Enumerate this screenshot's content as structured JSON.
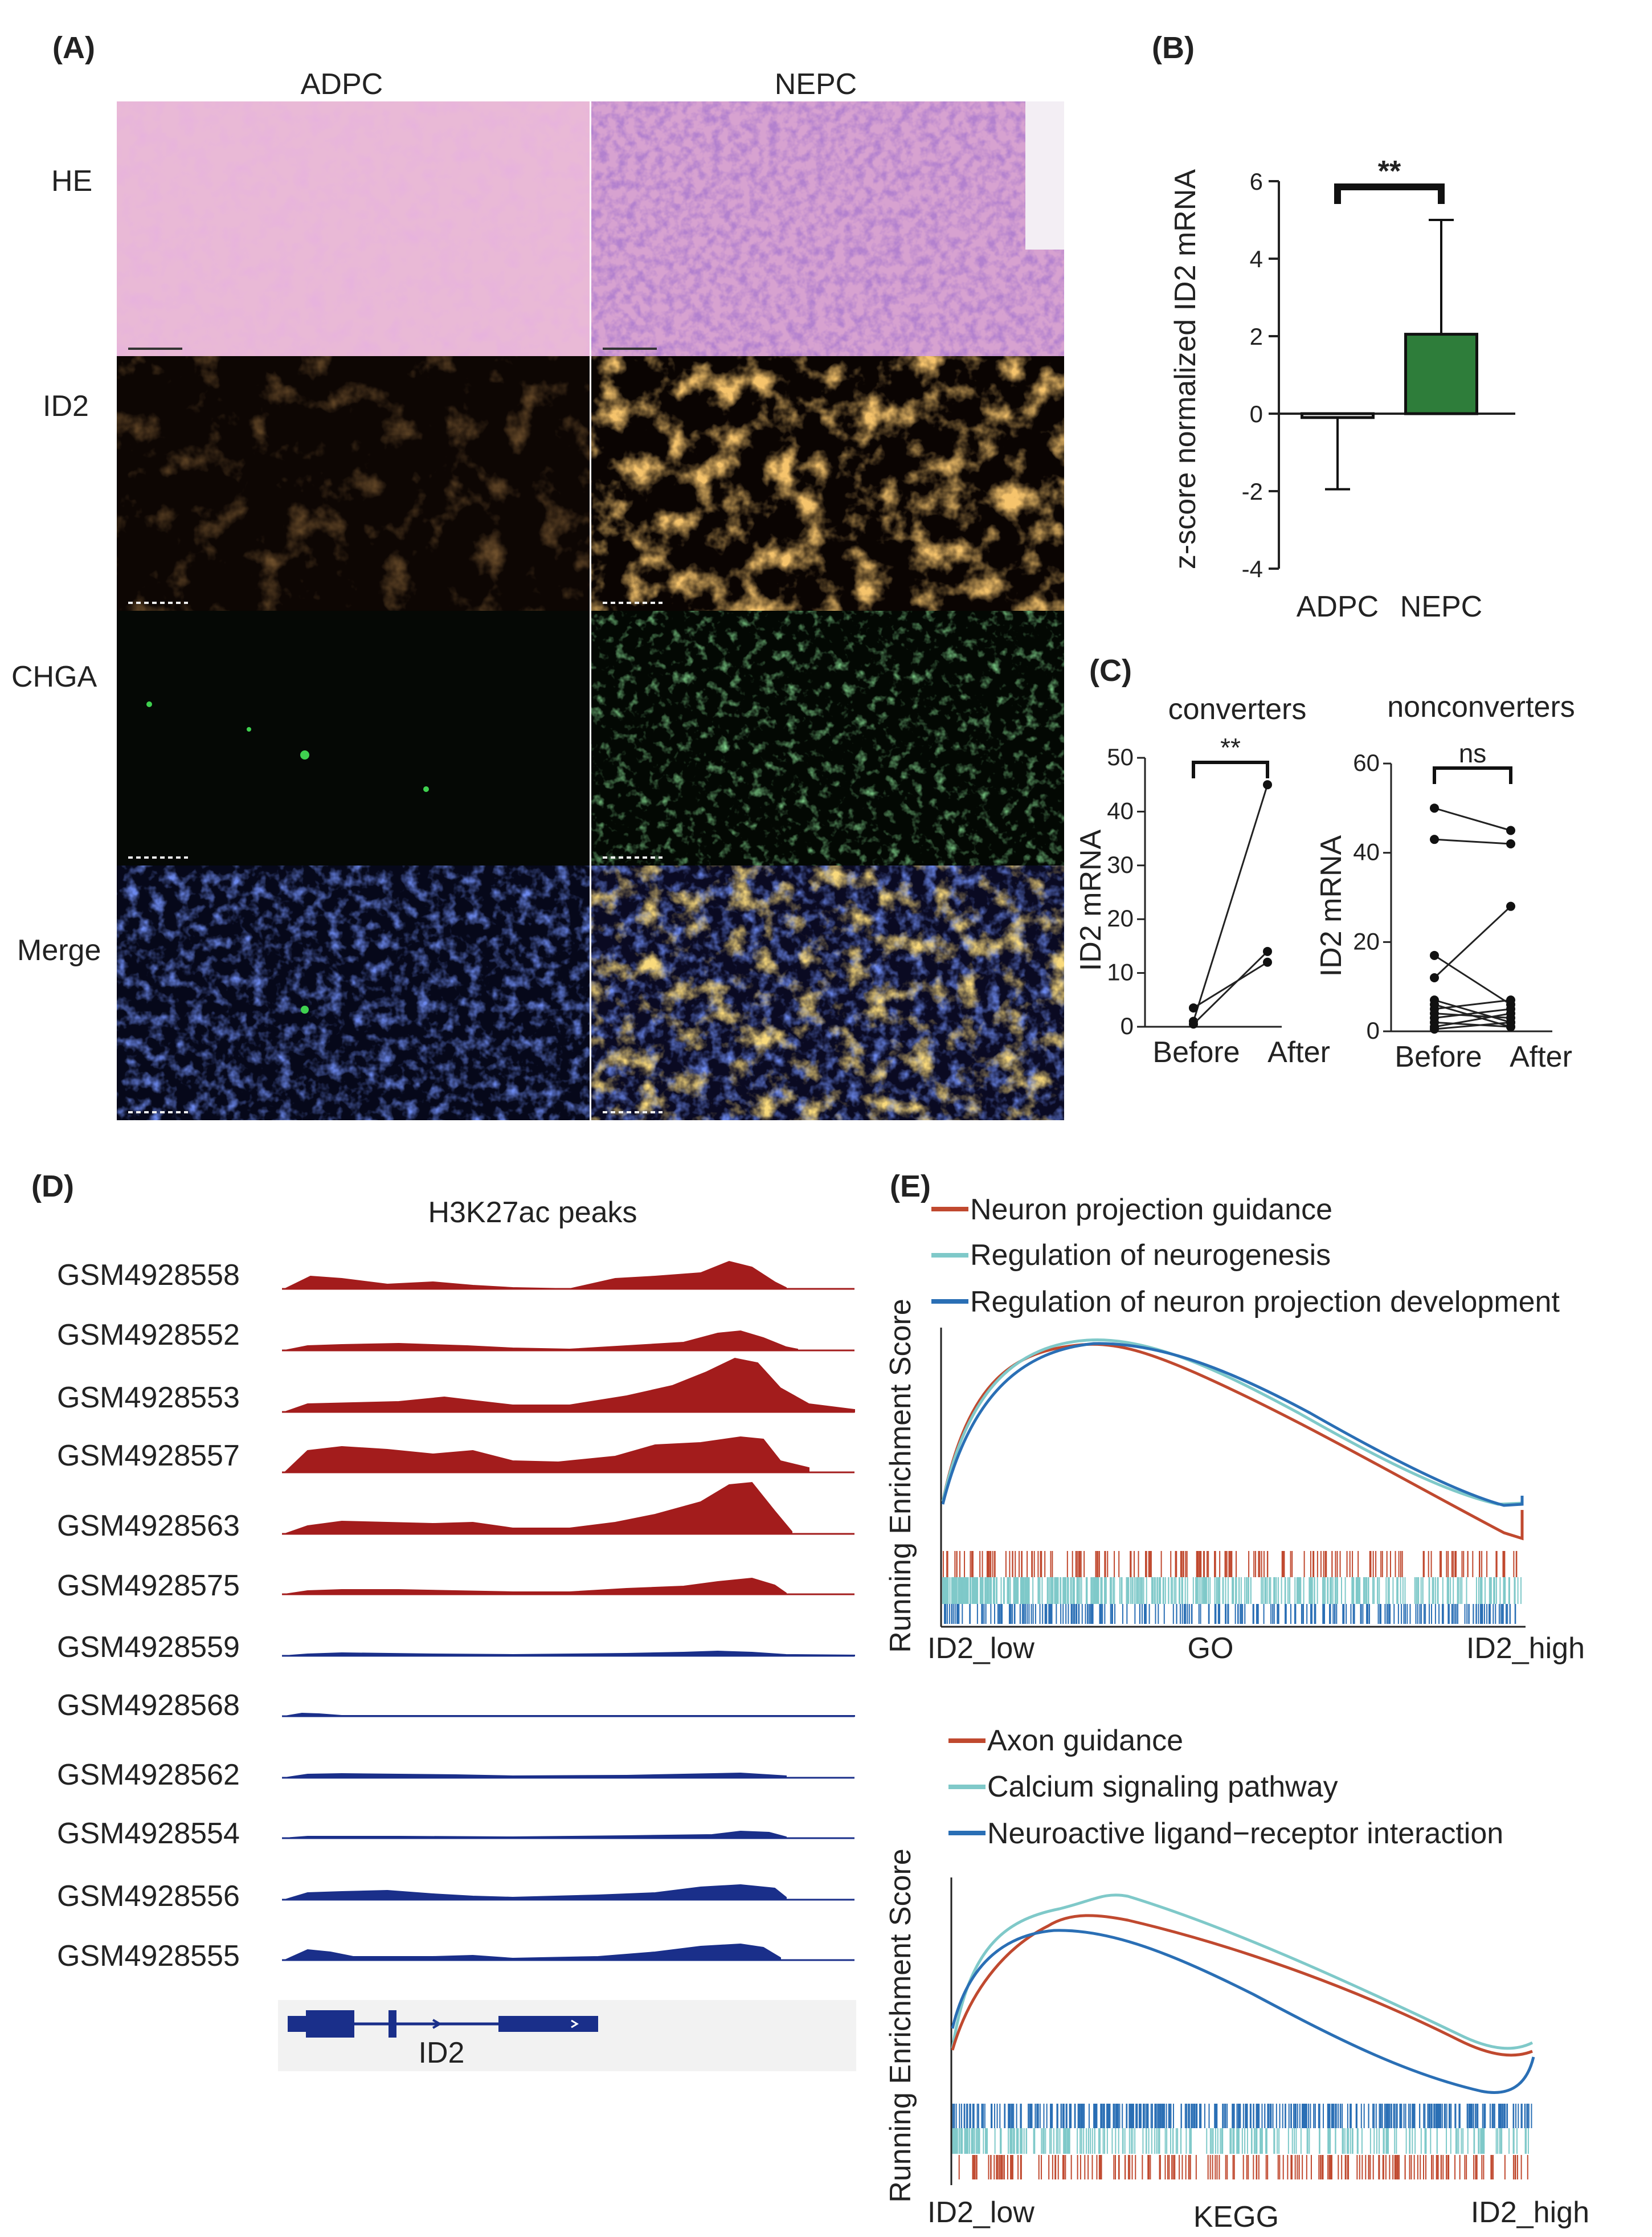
{
  "panelA": {
    "letter": "(A)",
    "col_labels": [
      "ADPC",
      "NEPC"
    ],
    "row_labels": [
      "HE",
      "ID2",
      "CHGA",
      "Merge"
    ]
  },
  "panelB": {
    "letter": "(B)",
    "chart_data": {
      "type": "bar",
      "categories": [
        "ADPC",
        "NEPC"
      ],
      "values": [
        -0.1,
        2.05
      ],
      "error_low": [
        -1.95,
        2.05
      ],
      "error_high": [
        -0.1,
        5.0
      ],
      "colors": [
        "#ffffff",
        "#2e7d3a"
      ],
      "ylabel": "z-score normalized ID2 mRNA",
      "yticks": [
        "6",
        "4",
        "2",
        "0",
        "-2",
        "-4"
      ],
      "ylim": [
        -4,
        6
      ],
      "significance": "**"
    }
  },
  "panelC": {
    "letter": "(C)",
    "chart_data": [
      {
        "type": "line",
        "title": "converters",
        "categories": [
          "Before",
          "After"
        ],
        "series": [
          {
            "values": [
              1,
              45
            ]
          },
          {
            "values": [
              3.5,
              12
            ]
          },
          {
            "values": [
              0.5,
              14
            ]
          }
        ],
        "ylabel": "ID2 mRNA",
        "yticks": [
          "50",
          "40",
          "30",
          "20",
          "10",
          "0"
        ],
        "ylim": [
          0,
          50
        ],
        "significance": "**"
      },
      {
        "type": "line",
        "title": "nonconverters",
        "categories": [
          "Before",
          "After"
        ],
        "series": [
          {
            "values": [
              50,
              45
            ]
          },
          {
            "values": [
              43,
              42
            ]
          },
          {
            "values": [
              17,
              6
            ]
          },
          {
            "values": [
              12,
              28
            ]
          },
          {
            "values": [
              7,
              2
            ]
          },
          {
            "values": [
              5,
              7
            ]
          },
          {
            "values": [
              4,
              3
            ]
          },
          {
            "values": [
              3,
              5
            ]
          },
          {
            "values": [
              2,
              1
            ]
          },
          {
            "values": [
              1,
              4
            ]
          },
          {
            "values": [
              0.5,
              2
            ]
          },
          {
            "values": [
              6,
              1
            ]
          }
        ],
        "ylabel": "ID2 mRNA",
        "yticks": [
          "60",
          "40",
          "20",
          "0"
        ],
        "ylim": [
          0,
          60
        ],
        "significance": "ns"
      }
    ]
  },
  "panelD": {
    "letter": "(D)",
    "title": "H3K27ac peaks",
    "gene": "ID2",
    "samples": [
      {
        "id": "GSM4928558",
        "group": "high"
      },
      {
        "id": "GSM4928552",
        "group": "high"
      },
      {
        "id": "GSM4928553",
        "group": "high"
      },
      {
        "id": "GSM4928557",
        "group": "high"
      },
      {
        "id": "GSM4928563",
        "group": "high"
      },
      {
        "id": "GSM4928575",
        "group": "high"
      },
      {
        "id": "GSM4928559",
        "group": "low"
      },
      {
        "id": "GSM4928568",
        "group": "low"
      },
      {
        "id": "GSM4928562",
        "group": "low"
      },
      {
        "id": "GSM4928554",
        "group": "low"
      },
      {
        "id": "GSM4928556",
        "group": "low"
      },
      {
        "id": "GSM4928555",
        "group": "low"
      }
    ],
    "colors": {
      "high": "#a31c1c",
      "low": "#1a2f8a"
    }
  },
  "panelE": {
    "letter": "(E)",
    "ylabel": "Running Enrichment Score",
    "x_left": "ID2_low",
    "x_right": "ID2_high",
    "go": {
      "xlabel": "GO",
      "legend": [
        {
          "name": "Neuron projection guidance",
          "color": "#c0492f"
        },
        {
          "name": "Regulation of neurogenesis",
          "color": "#7fc9c9"
        },
        {
          "name": "Regulation of neuron projection development",
          "color": "#2a6fb5"
        }
      ]
    },
    "kegg": {
      "xlabel": "KEGG",
      "legend": [
        {
          "name": "Axon guidance",
          "color": "#c0492f"
        },
        {
          "name": "Calcium signaling pathway",
          "color": "#7fc9c9"
        },
        {
          "name": "Neuroactive ligand−receptor interaction",
          "color": "#2a6fb5"
        }
      ]
    }
  }
}
